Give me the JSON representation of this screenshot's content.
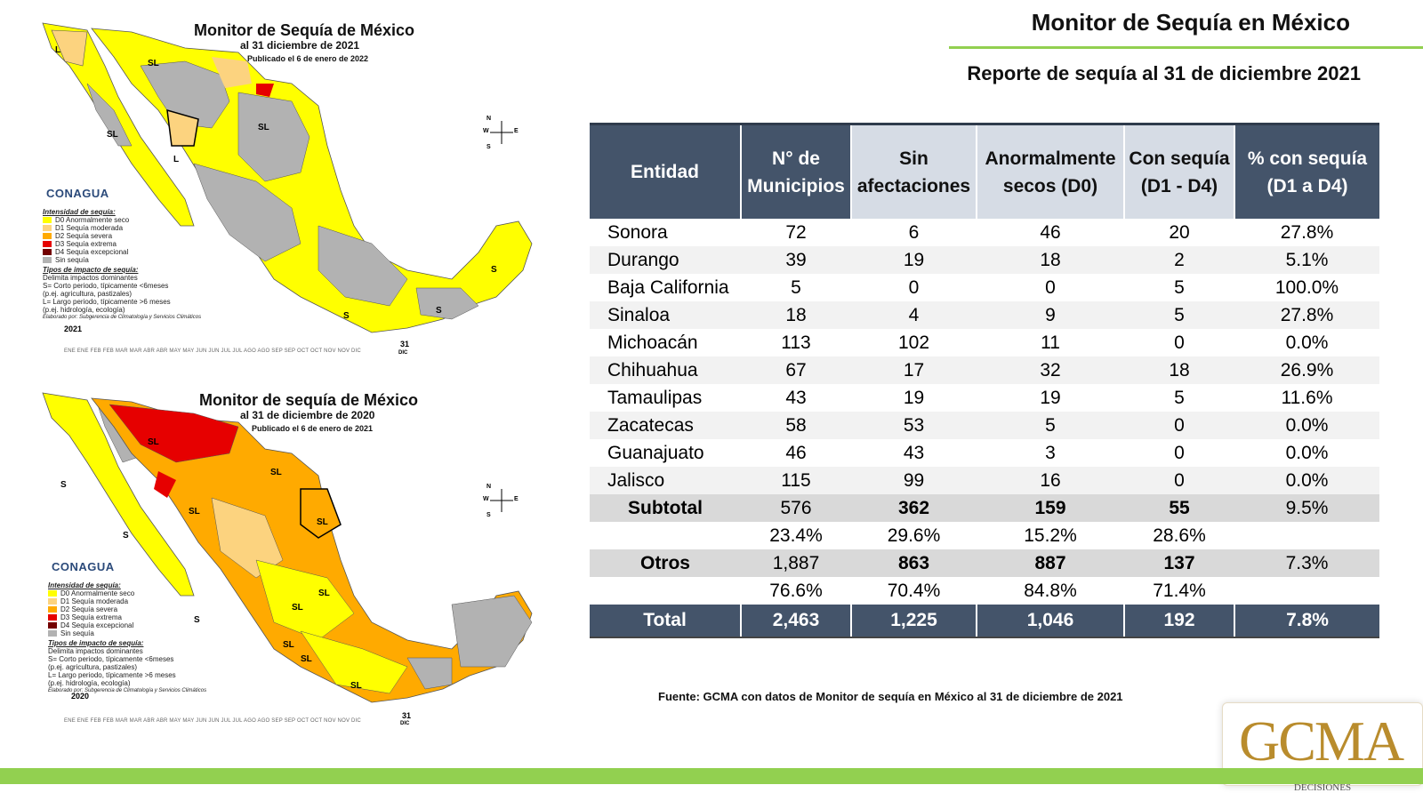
{
  "header": {
    "title": "Monitor de Sequía en México",
    "subtitle": "Reporte de sequía al 31 de diciembre 2021"
  },
  "table": {
    "columns": [
      [
        "Entidad"
      ],
      [
        "N° de",
        "Municipios"
      ],
      [
        "Sin",
        "afectaciones"
      ],
      [
        "Anormalmente",
        "secos (D0)"
      ],
      [
        "Con sequía",
        "(D1 - D4)"
      ],
      [
        "% con sequía",
        "(D1 a D4)"
      ]
    ],
    "rows": [
      [
        "Sonora",
        "72",
        "6",
        "46",
        "20",
        "27.8%"
      ],
      [
        "Durango",
        "39",
        "19",
        "18",
        "2",
        "5.1%"
      ],
      [
        "Baja California",
        "5",
        "0",
        "0",
        "5",
        "100.0%"
      ],
      [
        "Sinaloa",
        "18",
        "4",
        "9",
        "5",
        "27.8%"
      ],
      [
        "Michoacán",
        "113",
        "102",
        "11",
        "0",
        "0.0%"
      ],
      [
        "Chihuahua",
        "67",
        "17",
        "32",
        "18",
        "26.9%"
      ],
      [
        "Tamaulipas",
        "43",
        "19",
        "19",
        "5",
        "11.6%"
      ],
      [
        "Zacatecas",
        "58",
        "53",
        "5",
        "0",
        "0.0%"
      ],
      [
        "Guanajuato",
        "46",
        "43",
        "3",
        "0",
        "0.0%"
      ],
      [
        "Jalisco",
        "115",
        "99",
        "16",
        "0",
        "0.0%"
      ]
    ],
    "subtotal": [
      "Subtotal",
      "576",
      "362",
      "159",
      "55",
      "9.5%"
    ],
    "subtotal_pct": [
      "",
      "23.4%",
      "29.6%",
      "15.2%",
      "28.6%",
      ""
    ],
    "otros": [
      "Otros",
      "1,887",
      "863",
      "887",
      "137",
      "7.3%"
    ],
    "otros_pct": [
      "",
      "76.6%",
      "70.4%",
      "84.8%",
      "71.4%",
      ""
    ],
    "total": [
      "Total",
      "2,463",
      "1,225",
      "1,046",
      "192",
      "7.8%"
    ]
  },
  "source": "Fuente: GCMA con datos de Monitor de sequía en México al 31 de diciembre de 2021",
  "logo": {
    "text": "GCMA",
    "tagline": "CERTEZA EN LA TOMA DE DECISIONES"
  },
  "maps": [
    {
      "title": "Monitor de Sequía de México",
      "subtitle": "al 31 diciembre de 2021",
      "published": "Publicado el 6 de enero de 2022",
      "year": "2021",
      "region_labels": [
        "L",
        "SL",
        "SL",
        "SL",
        "L",
        "S",
        "S",
        "S"
      ]
    },
    {
      "title": "Monitor de sequía de México",
      "subtitle": "al 31 de diciembre de 2020",
      "published": "Publicado el 6 de enero de 2021",
      "year": "2020",
      "region_labels": [
        "SL",
        "SL",
        "S",
        "SL",
        "SL",
        "S",
        "S",
        "SL",
        "SL",
        "SL",
        "SL",
        "SL"
      ]
    }
  ],
  "map_common": {
    "agency": "CONAGUA",
    "legend_intensity_title": "Intensidad de sequía:",
    "legend_intensity": [
      {
        "label": "D0 Anormalmente seco",
        "color": "#ffff00"
      },
      {
        "label": "D1 Sequía moderada",
        "color": "#fcd37f"
      },
      {
        "label": "D2 Sequía severa",
        "color": "#ffaa00"
      },
      {
        "label": "D3 Sequía extrema",
        "color": "#e60000"
      },
      {
        "label": "D4 Sequía excepcional",
        "color": "#730000"
      },
      {
        "label": "Sin sequía",
        "color": "#b2b2b2"
      }
    ],
    "legend_impact_title": "Tipos de impacto de sequía:",
    "legend_impact": [
      "Delimita impactos dominantes",
      "S= Corto periodo, típicamente <6meses",
      "(p.ej. agricultura, pastizales)",
      "L= Largo periodo, típicamente >6 meses",
      "(p.ej. hidrología, ecología)"
    ],
    "credit": "Elaborado por: Subgerencia de Climatología y Servicios Climáticos",
    "months": "ENE ENE FEB FEB MAR MAR ABR ABR MAY MAY JUN JUN JUL JUL AGO AGO SEP SEP OCT OCT NOV NOV DIC",
    "end_day": "31",
    "end_month": "DIC",
    "compass": {
      "n": "N",
      "s": "S",
      "e": "E",
      "w": "W"
    }
  }
}
